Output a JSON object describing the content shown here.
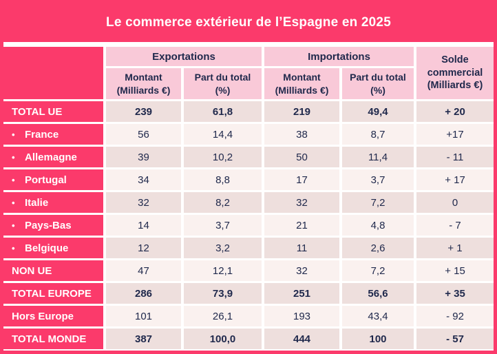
{
  "title": "Le commerce extérieur de l’Espagne en 2025",
  "colors": {
    "pink": "#fb3a6b",
    "light_pink": "#f9c9d8",
    "cell_dark": "#eedfdd",
    "cell_light": "#faf1ef",
    "navy": "#20294c"
  },
  "table": {
    "groups": [
      "Exportations",
      "Importations"
    ],
    "solde_header": "Solde commercial (Milliards €)",
    "subheaders": [
      "Montant (Milliards €)",
      "Part du total (%)",
      "Montant (Milliards €)",
      "Part du total (%)"
    ],
    "rows": [
      {
        "label": "TOTAL UE",
        "bullet": false,
        "bold": true,
        "values": [
          "239",
          "61,8",
          "219",
          "49,4",
          "+ 20"
        ]
      },
      {
        "label": "France",
        "bullet": true,
        "bold": false,
        "values": [
          "56",
          "14,4",
          "38",
          "8,7",
          "+17"
        ]
      },
      {
        "label": "Allemagne",
        "bullet": true,
        "bold": false,
        "values": [
          "39",
          "10,2",
          "50",
          "11,4",
          "- 11"
        ]
      },
      {
        "label": "Portugal",
        "bullet": true,
        "bold": false,
        "values": [
          "34",
          "8,8",
          "17",
          "3,7",
          "+ 17"
        ]
      },
      {
        "label": "Italie",
        "bullet": true,
        "bold": false,
        "values": [
          "32",
          "8,2",
          "32",
          "7,2",
          "0"
        ]
      },
      {
        "label": "Pays-Bas",
        "bullet": true,
        "bold": false,
        "values": [
          "14",
          "3,7",
          "21",
          "4,8",
          "- 7"
        ]
      },
      {
        "label": "Belgique",
        "bullet": true,
        "bold": false,
        "values": [
          "12",
          "3,2",
          "11",
          "2,6",
          "+ 1"
        ]
      },
      {
        "label": "NON UE",
        "bullet": false,
        "bold": false,
        "values": [
          "47",
          "12,1",
          "32",
          "7,2",
          "+ 15"
        ]
      },
      {
        "label": "TOTAL EUROPE",
        "bullet": false,
        "bold": true,
        "values": [
          "286",
          "73,9",
          "251",
          "56,6",
          "+ 35"
        ]
      },
      {
        "label": "Hors Europe",
        "bullet": false,
        "bold": false,
        "values": [
          "101",
          "26,1",
          "193",
          "43,4",
          "- 92"
        ]
      },
      {
        "label": "TOTAL MONDE",
        "bullet": false,
        "bold": true,
        "values": [
          "387",
          "100,0",
          "444",
          "100",
          "- 57"
        ]
      }
    ]
  },
  "chart_data": {
    "type": "table",
    "title": "Le commerce extérieur de l’Espagne en 2025",
    "columns": [
      "Exportations — Montant (Milliards €)",
      "Exportations — Part du total (%)",
      "Importations — Montant (Milliards €)",
      "Importations — Part du total (%)",
      "Solde commercial (Milliards €)"
    ],
    "rows": [
      {
        "label": "TOTAL UE",
        "exportations_montant": 239,
        "exportations_part_pct": 61.8,
        "importations_montant": 219,
        "importations_part_pct": 49.4,
        "solde_commercial": 20
      },
      {
        "label": "France",
        "exportations_montant": 56,
        "exportations_part_pct": 14.4,
        "importations_montant": 38,
        "importations_part_pct": 8.7,
        "solde_commercial": 17
      },
      {
        "label": "Allemagne",
        "exportations_montant": 39,
        "exportations_part_pct": 10.2,
        "importations_montant": 50,
        "importations_part_pct": 11.4,
        "solde_commercial": -11
      },
      {
        "label": "Portugal",
        "exportations_montant": 34,
        "exportations_part_pct": 8.8,
        "importations_montant": 17,
        "importations_part_pct": 3.7,
        "solde_commercial": 17
      },
      {
        "label": "Italie",
        "exportations_montant": 32,
        "exportations_part_pct": 8.2,
        "importations_montant": 32,
        "importations_part_pct": 7.2,
        "solde_commercial": 0
      },
      {
        "label": "Pays-Bas",
        "exportations_montant": 14,
        "exportations_part_pct": 3.7,
        "importations_montant": 21,
        "importations_part_pct": 4.8,
        "solde_commercial": -7
      },
      {
        "label": "Belgique",
        "exportations_montant": 12,
        "exportations_part_pct": 3.2,
        "importations_montant": 11,
        "importations_part_pct": 2.6,
        "solde_commercial": 1
      },
      {
        "label": "NON UE",
        "exportations_montant": 47,
        "exportations_part_pct": 12.1,
        "importations_montant": 32,
        "importations_part_pct": 7.2,
        "solde_commercial": 15
      },
      {
        "label": "TOTAL EUROPE",
        "exportations_montant": 286,
        "exportations_part_pct": 73.9,
        "importations_montant": 251,
        "importations_part_pct": 56.6,
        "solde_commercial": 35
      },
      {
        "label": "Hors Europe",
        "exportations_montant": 101,
        "exportations_part_pct": 26.1,
        "importations_montant": 193,
        "importations_part_pct": 43.4,
        "solde_commercial": -92
      },
      {
        "label": "TOTAL MONDE",
        "exportations_montant": 387,
        "exportations_part_pct": 100.0,
        "importations_montant": 444,
        "importations_part_pct": 100,
        "solde_commercial": -57
      }
    ]
  }
}
